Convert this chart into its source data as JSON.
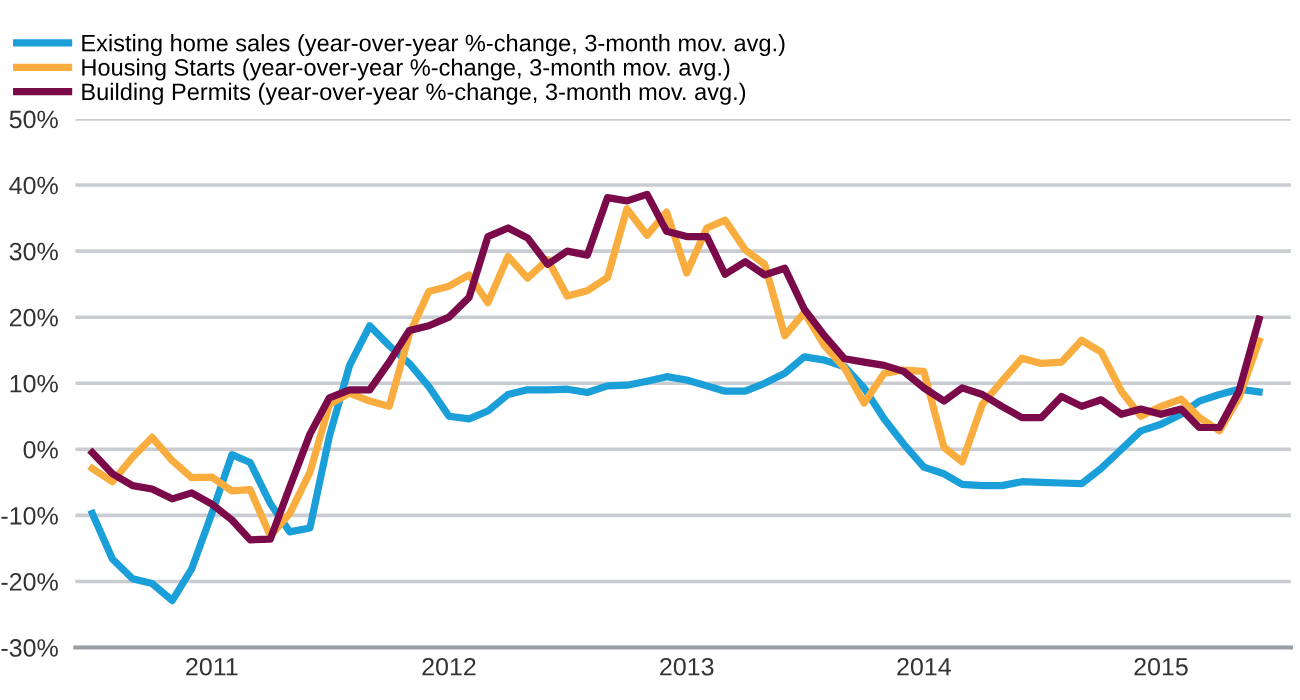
{
  "chart_data": {
    "type": "line",
    "x": [
      "2010-07",
      "2010-08",
      "2010-09",
      "2010-10",
      "2010-11",
      "2010-12",
      "2011-01",
      "2011-02",
      "2011-03",
      "2011-04",
      "2011-05",
      "2011-06",
      "2011-07",
      "2011-08",
      "2011-09",
      "2011-10",
      "2011-11",
      "2011-12",
      "2012-01",
      "2012-02",
      "2012-03",
      "2012-04",
      "2012-05",
      "2012-06",
      "2012-07",
      "2012-08",
      "2012-09",
      "2012-10",
      "2012-11",
      "2012-12",
      "2013-01",
      "2013-02",
      "2013-03",
      "2013-04",
      "2013-05",
      "2013-06",
      "2013-07",
      "2013-08",
      "2013-09",
      "2013-10",
      "2013-11",
      "2013-12",
      "2014-01",
      "2014-02",
      "2014-03",
      "2014-04",
      "2014-05",
      "2014-06",
      "2014-07",
      "2014-08",
      "2014-09",
      "2014-10",
      "2014-11",
      "2014-12",
      "2015-01",
      "2015-02",
      "2015-03",
      "2015-04",
      "2015-05",
      "2015-06"
    ],
    "series": [
      {
        "name": "Existing home sales (year-over-year %-change, 3-month mov. avg.)",
        "color": "#1a9fd9",
        "values": [
          -9.7,
          -16.6,
          -19.6,
          -20.3,
          -22.9,
          -18.1,
          -9.7,
          -0.8,
          -2,
          -8.2,
          -12.5,
          -11.9,
          2,
          12.7,
          18.7,
          15.7,
          13,
          9.5,
          5,
          4.6,
          5.8,
          8.3,
          9,
          9,
          9.1,
          8.6,
          9.6,
          9.7,
          10.3,
          11,
          10.5,
          9.6,
          8.8,
          8.8,
          10,
          11.5,
          14,
          13.5,
          12.5,
          9.3,
          4.6,
          0.8,
          -2.7,
          -3.7,
          -5.3,
          -5.5,
          -5.5,
          -4.9,
          -5,
          -5.1,
          -5.2,
          -2.9,
          0,
          2.8,
          3.8,
          5.3,
          7.3,
          8.3,
          9.1,
          8.7
        ]
      },
      {
        "name": "Housing Starts (year-over-year %-change, 3-month mov. avg.)",
        "color": "#f9ad3f",
        "values": [
          -2.9,
          -4.9,
          -1.2,
          1.8,
          -1.7,
          -4.3,
          -4.2,
          -6.3,
          -6.1,
          -13.1,
          -9.7,
          -3.5,
          6.8,
          8.5,
          7.3,
          6.5,
          17.4,
          23.9,
          24.7,
          26.4,
          22.2,
          29.2,
          25.9,
          28.7,
          23.2,
          24,
          26,
          36.4,
          32.4,
          35.9,
          26.7,
          33.5,
          34.7,
          30.2,
          28,
          17.2,
          20.7,
          15.7,
          12.3,
          7,
          11.5,
          12,
          11.8,
          0.3,
          -1.9,
          6.8,
          10.3,
          13.8,
          13,
          13.2,
          16.5,
          14.7,
          8.8,
          5,
          6.5,
          7.6,
          4.8,
          2.8,
          7.8,
          16.4
        ]
      },
      {
        "name": "Building Permits (year-over-year %-change, 3-month mov. avg.)",
        "color": "#7b0a4a",
        "values": [
          -0.5,
          -3.7,
          -5.5,
          -6,
          -7.5,
          -6.6,
          -8.3,
          -10.7,
          -13.7,
          -13.6,
          -5.7,
          2.3,
          7.8,
          9,
          9,
          13.2,
          18,
          18.7,
          20,
          23,
          32.2,
          33.5,
          32,
          28,
          30,
          29.4,
          38.1,
          37.6,
          38.6,
          33,
          32.2,
          32.2,
          26.5,
          28.4,
          26.4,
          27.4,
          21.2,
          17.2,
          13.7,
          13.2,
          12.7,
          11.8,
          9.3,
          7.3,
          9.3,
          8.3,
          6.5,
          4.8,
          4.8,
          8,
          6.5,
          7.5,
          5.3,
          6.1,
          5.3,
          6.1,
          3.3,
          3.3,
          8.8,
          19.7
        ]
      }
    ],
    "xlim": [
      "2010-06-05",
      "2015-07-20"
    ],
    "xticks": [
      {
        "value": "2011",
        "label": "2011"
      },
      {
        "value": "2012",
        "label": "2012"
      },
      {
        "value": "2013",
        "label": "2013"
      },
      {
        "value": "2014",
        "label": "2014"
      },
      {
        "value": "2015",
        "label": "2015"
      }
    ],
    "ylim": [
      -30,
      50
    ],
    "yticks": [
      {
        "value": -30,
        "label": "-30%"
      },
      {
        "value": -20,
        "label": "-20%"
      },
      {
        "value": -10,
        "label": "-10%"
      },
      {
        "value": 0,
        "label": "0%"
      },
      {
        "value": 10,
        "label": "10%"
      },
      {
        "value": 20,
        "label": "20%"
      },
      {
        "value": 30,
        "label": "30%"
      },
      {
        "value": 40,
        "label": "40%"
      },
      {
        "value": 50,
        "label": "50%"
      }
    ],
    "grid": "y",
    "legend": "top left",
    "marker": "none",
    "line_style": "solid"
  }
}
